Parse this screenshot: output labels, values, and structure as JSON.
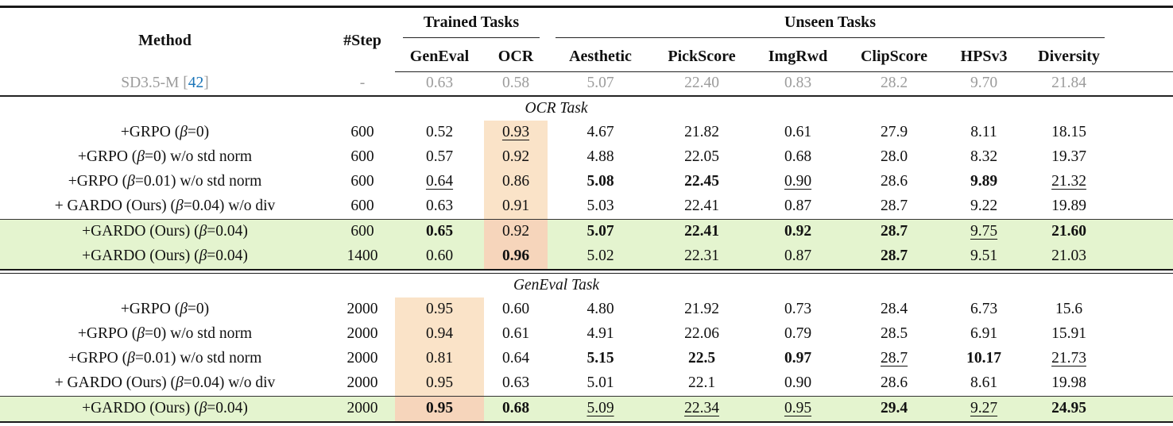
{
  "table": {
    "columns": [
      "Method",
      "#Step",
      "GenEval",
      "OCR",
      "Aesthetic",
      "PickScore",
      "ImgRwd",
      "ClipScore",
      "HPSv3",
      "Diversity"
    ],
    "groups": [
      {
        "label": "Trained Tasks"
      },
      {
        "label": "Unseen Tasks"
      }
    ],
    "baseline": {
      "method_prefix": "SD3.5-M [",
      "cite": "42",
      "method_suffix": "]",
      "values": [
        "-",
        "0.63",
        "0.58",
        "5.07",
        "22.40",
        "0.83",
        "28.2",
        "9.70",
        "21.84"
      ]
    },
    "sections": [
      {
        "title": "OCR Task",
        "highlight_col": 3,
        "rows": [
          {
            "method": "+GRPO (β=0)",
            "cells": [
              [
                "600",
                ""
              ],
              [
                "0.52",
                ""
              ],
              [
                "0.93",
                "u"
              ],
              [
                "4.67",
                ""
              ],
              [
                "21.82",
                ""
              ],
              [
                "0.61",
                ""
              ],
              [
                "27.9",
                ""
              ],
              [
                "8.11",
                ""
              ],
              [
                "18.15",
                ""
              ]
            ]
          },
          {
            "method": "+GRPO (β=0) w/o std norm",
            "cells": [
              [
                "600",
                ""
              ],
              [
                "0.57",
                ""
              ],
              [
                "0.92",
                ""
              ],
              [
                "4.88",
                ""
              ],
              [
                "22.05",
                ""
              ],
              [
                "0.68",
                ""
              ],
              [
                "28.0",
                ""
              ],
              [
                "8.32",
                ""
              ],
              [
                "19.37",
                ""
              ]
            ]
          },
          {
            "method": "+GRPO (β=0.01) w/o std norm",
            "cells": [
              [
                "600",
                ""
              ],
              [
                "0.64",
                "u"
              ],
              [
                "0.86",
                ""
              ],
              [
                "5.08",
                "b"
              ],
              [
                "22.45",
                "b"
              ],
              [
                "0.90",
                "u"
              ],
              [
                "28.6",
                ""
              ],
              [
                "9.89",
                "b"
              ],
              [
                "21.32",
                "u"
              ]
            ]
          },
          {
            "method": "+ GARDO (Ours) (β=0.04) w/o div",
            "cells": [
              [
                "600",
                ""
              ],
              [
                "0.63",
                ""
              ],
              [
                "0.91",
                ""
              ],
              [
                "5.03",
                ""
              ],
              [
                "22.41",
                ""
              ],
              [
                "0.87",
                ""
              ],
              [
                "28.7",
                ""
              ],
              [
                "9.22",
                ""
              ],
              [
                "19.89",
                ""
              ]
            ]
          }
        ],
        "ours_rows": [
          {
            "method": "+GARDO (Ours) (β=0.04)",
            "cells": [
              [
                "600",
                ""
              ],
              [
                "0.65",
                "b"
              ],
              [
                "0.92",
                ""
              ],
              [
                "5.07",
                "b"
              ],
              [
                "22.41",
                "b"
              ],
              [
                "0.92",
                "b"
              ],
              [
                "28.7",
                "b"
              ],
              [
                "9.75",
                "u"
              ],
              [
                "21.60",
                "b"
              ]
            ]
          },
          {
            "method": "+GARDO (Ours) (β=0.04)",
            "cells": [
              [
                "1400",
                ""
              ],
              [
                "0.60",
                ""
              ],
              [
                "0.96",
                "b"
              ],
              [
                "5.02",
                ""
              ],
              [
                "22.31",
                ""
              ],
              [
                "0.87",
                ""
              ],
              [
                "28.7",
                "b"
              ],
              [
                "9.51",
                ""
              ],
              [
                "21.03",
                ""
              ]
            ]
          }
        ]
      },
      {
        "title": "GenEval Task",
        "highlight_col": 2,
        "rows": [
          {
            "method": "+GRPO (β=0)",
            "cells": [
              [
                "2000",
                ""
              ],
              [
                "0.95",
                ""
              ],
              [
                "0.60",
                ""
              ],
              [
                "4.80",
                ""
              ],
              [
                "21.92",
                ""
              ],
              [
                "0.73",
                ""
              ],
              [
                "28.4",
                ""
              ],
              [
                "6.73",
                ""
              ],
              [
                "15.6",
                ""
              ]
            ]
          },
          {
            "method": "+GRPO (β=0) w/o std norm",
            "cells": [
              [
                "2000",
                ""
              ],
              [
                "0.94",
                ""
              ],
              [
                "0.61",
                ""
              ],
              [
                "4.91",
                ""
              ],
              [
                "22.06",
                ""
              ],
              [
                "0.79",
                ""
              ],
              [
                "28.5",
                ""
              ],
              [
                "6.91",
                ""
              ],
              [
                "15.91",
                ""
              ]
            ]
          },
          {
            "method": "+GRPO (β=0.01) w/o std norm",
            "cells": [
              [
                "2000",
                ""
              ],
              [
                "0.81",
                ""
              ],
              [
                "0.64",
                ""
              ],
              [
                "5.15",
                "b"
              ],
              [
                "22.5",
                "b"
              ],
              [
                "0.97",
                "b"
              ],
              [
                "28.7",
                "u"
              ],
              [
                "10.17",
                "b"
              ],
              [
                "21.73",
                "u"
              ]
            ]
          },
          {
            "method": "+ GARDO (Ours) (β=0.04) w/o div",
            "cells": [
              [
                "2000",
                ""
              ],
              [
                "0.95",
                ""
              ],
              [
                "0.63",
                ""
              ],
              [
                "5.01",
                ""
              ],
              [
                "22.1",
                ""
              ],
              [
                "0.90",
                ""
              ],
              [
                "28.6",
                ""
              ],
              [
                "8.61",
                ""
              ],
              [
                "19.98",
                ""
              ]
            ]
          }
        ],
        "ours_rows": [
          {
            "method": "+GARDO (Ours) (β=0.04)",
            "cells": [
              [
                "2000",
                ""
              ],
              [
                "0.95",
                "b"
              ],
              [
                "0.68",
                "b"
              ],
              [
                "5.09",
                "u"
              ],
              [
                "22.34",
                "u"
              ],
              [
                "0.95",
                "u"
              ],
              [
                "29.4",
                "b"
              ],
              [
                "9.27",
                "u"
              ],
              [
                "24.95",
                "b"
              ]
            ]
          }
        ]
      }
    ],
    "colors": {
      "ours_row_green": "#e4f4cf",
      "trained_highlight_peach": "#fae3c8",
      "trained_highlight_on_green": "#f6d5bb",
      "baseline_gray": "#9c9c9c",
      "cite_blue": "#1874b8"
    }
  }
}
